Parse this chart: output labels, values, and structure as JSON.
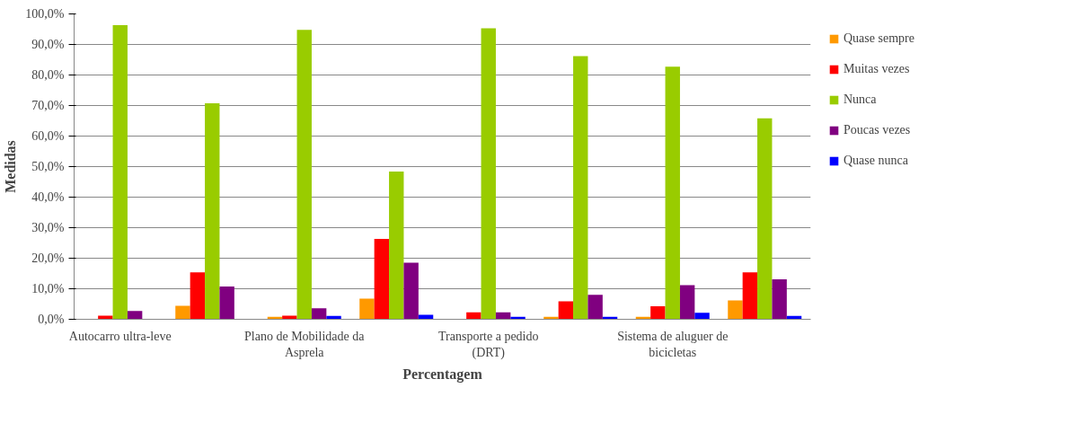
{
  "chart_data": {
    "type": "bar",
    "xlabel": "Percentagem",
    "ylabel": "Medidas",
    "categories": [
      "Autocarro ultra-leve",
      null,
      "Plano de Mobilidade da Asprela",
      null,
      "Transporte a pedido (DRT)",
      null,
      "Sistema de aluguer de bicicletas",
      null
    ],
    "series": [
      {
        "name": "Quase sempre",
        "color": "#ff9900",
        "values": [
          0,
          4.4,
          0.8,
          6.8,
          0,
          0.8,
          0.8,
          6.2
        ]
      },
      {
        "name": "Muitas vezes",
        "color": "#ff0000",
        "values": [
          1.2,
          15.4,
          1.2,
          26.3,
          2.3,
          5.9,
          4.3,
          15.4
        ]
      },
      {
        "name": "Nunca",
        "color": "#99cc00",
        "values": [
          96.3,
          70.7,
          94.8,
          48.4,
          95.3,
          86.2,
          82.7,
          65.8
        ]
      },
      {
        "name": "Poucas vezes",
        "color": "#800080",
        "values": [
          2.7,
          10.7,
          3.6,
          18.5,
          2.3,
          8.0,
          11.2,
          13.1
        ]
      },
      {
        "name": "Quase nunca",
        "color": "#0000ff",
        "values": [
          0,
          0,
          1.1,
          1.5,
          0.8,
          0.8,
          2.1,
          1.1
        ]
      }
    ],
    "ylim": [
      0,
      100
    ],
    "yticks": [
      {
        "value": 0,
        "label": "0,0%"
      },
      {
        "value": 10,
        "label": "10,0%"
      },
      {
        "value": 20,
        "label": "20,0%"
      },
      {
        "value": 30,
        "label": "30,0%"
      },
      {
        "value": 40,
        "label": "40,0%"
      },
      {
        "value": 50,
        "label": "50,0%"
      },
      {
        "value": 60,
        "label": "60,0%"
      },
      {
        "value": 70,
        "label": "70,0%"
      },
      {
        "value": 80,
        "label": "80,0%"
      },
      {
        "value": 90,
        "label": "90,0%"
      },
      {
        "value": 100,
        "label": "100,0%"
      }
    ],
    "grid": "y",
    "legend": "right"
  }
}
